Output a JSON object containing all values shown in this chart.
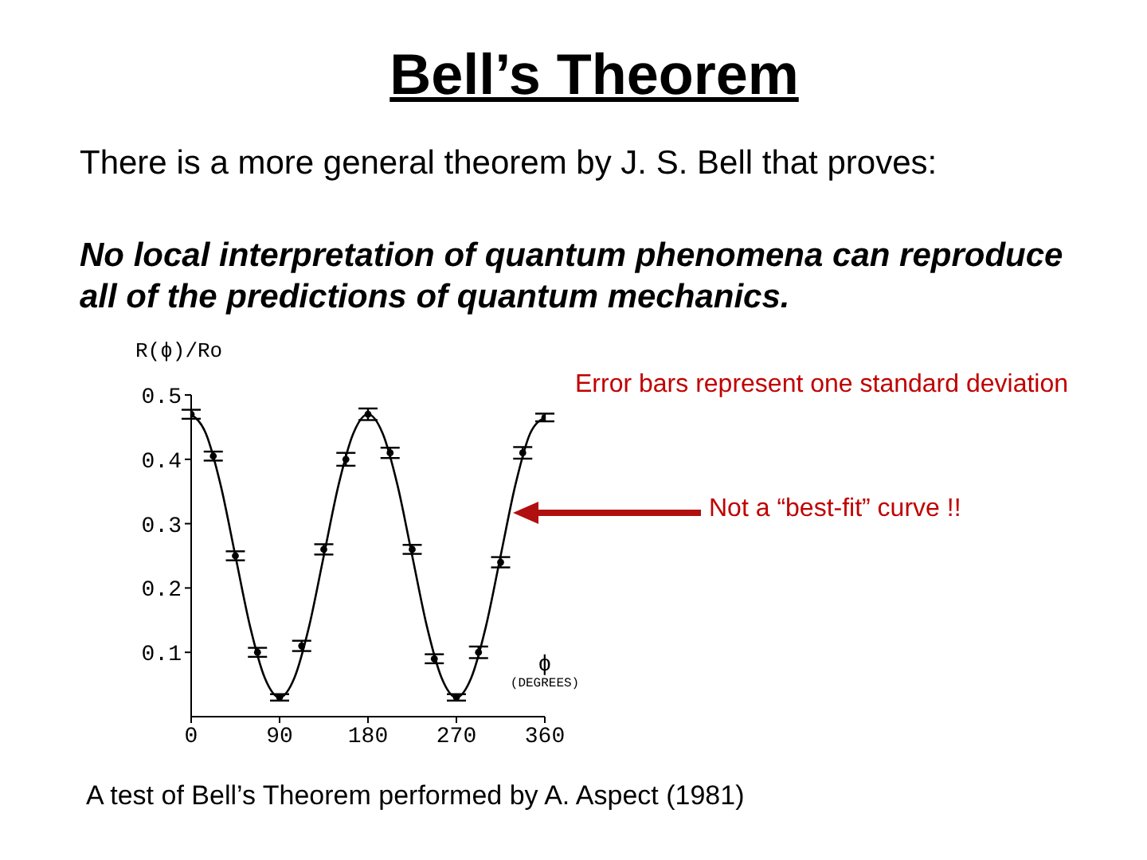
{
  "chart_data": {
    "type": "line",
    "title": "Bell’s Theorem",
    "subtitle": "There is a more general theorem by J. S. Bell that proves:",
    "annotations": [
      "No local interpretation of quantum phenomena can reproduce all of the predictions of quantum mechanics.",
      "Error bars represent one standard deviation",
      "Not a “best-fit” curve !!",
      "A test of Bell’s Theorem performed by A. Aspect (1981)"
    ],
    "ylabel": "R(ϕ)/Ro",
    "xlabel": "ϕ (DEGREES)",
    "xlim": [
      0,
      360
    ],
    "xticks": [
      0,
      90,
      180,
      270,
      360
    ],
    "ylim": [
      0,
      0.5
    ],
    "yticks": [
      0.1,
      0.2,
      0.3,
      0.4,
      0.5
    ],
    "grid": false,
    "series": [
      {
        "type": "line",
        "color": "#000000",
        "marker": "none",
        "x": [
          0,
          15,
          30,
          45,
          60,
          75,
          90,
          105,
          120,
          135,
          150,
          165,
          180,
          195,
          210,
          225,
          240,
          255,
          270,
          285,
          300,
          315,
          330,
          345,
          360
        ],
        "values": [
          0.47,
          0.44,
          0.36,
          0.25,
          0.14,
          0.06,
          0.03,
          0.06,
          0.14,
          0.25,
          0.36,
          0.44,
          0.47,
          0.44,
          0.36,
          0.25,
          0.14,
          0.06,
          0.03,
          0.06,
          0.14,
          0.25,
          0.36,
          0.44,
          0.465
        ]
      },
      {
        "type": "scatter",
        "color": "#000000",
        "marker": "circle",
        "x": [
          0,
          22.5,
          45,
          67.5,
          90,
          112.5,
          135,
          157.5,
          180,
          202.5,
          225,
          247.5,
          270,
          292.5,
          315,
          337.5,
          360
        ],
        "values": [
          0.47,
          0.405,
          0.25,
          0.1,
          0.03,
          0.11,
          0.26,
          0.4,
          0.47,
          0.41,
          0.26,
          0.09,
          0.03,
          0.1,
          0.24,
          0.41,
          0.465
        ],
        "errors": [
          0.007,
          0.007,
          0.007,
          0.007,
          0.005,
          0.008,
          0.008,
          0.01,
          0.009,
          0.008,
          0.007,
          0.007,
          0.005,
          0.009,
          0.008,
          0.009,
          0.006
        ]
      }
    ]
  }
}
